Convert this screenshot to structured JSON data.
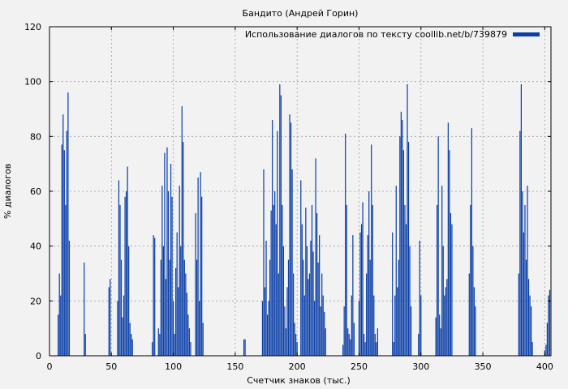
{
  "chart_data": {
    "type": "bar",
    "title": "Бандито (Андрей Горин)",
    "xlabel": "Счетчик знаков (тыс.)",
    "ylabel": "% диалогов",
    "xlim": [
      0,
      405
    ],
    "ylim": [
      0,
      120
    ],
    "xticks": [
      0,
      50,
      100,
      150,
      200,
      250,
      300,
      350,
      400
    ],
    "yticks": [
      0,
      20,
      40,
      60,
      80,
      100,
      120
    ],
    "grid": true,
    "legend_position": "top-right",
    "series": [
      {
        "name": "Использование диалогов по тексту coollib.net/b/739879",
        "color": "#0b3fa8",
        "bar_width": 0.8,
        "x": [
          7,
          8,
          9,
          10,
          11,
          12,
          13,
          14,
          15,
          16,
          28,
          29,
          48,
          49,
          55,
          56,
          57,
          58,
          59,
          60,
          61,
          62,
          63,
          64,
          65,
          66,
          67,
          83,
          84,
          85,
          88,
          89,
          90,
          91,
          92,
          93,
          94,
          95,
          96,
          97,
          98,
          99,
          100,
          101,
          102,
          103,
          104,
          105,
          106,
          107,
          108,
          109,
          110,
          111,
          112,
          113,
          114,
          118,
          119,
          120,
          121,
          122,
          123,
          124,
          157,
          158,
          172,
          173,
          174,
          175,
          176,
          177,
          178,
          179,
          180,
          181,
          182,
          183,
          184,
          185,
          186,
          187,
          188,
          189,
          190,
          191,
          192,
          193,
          194,
          195,
          196,
          197,
          198,
          199,
          200,
          203,
          204,
          205,
          206,
          207,
          208,
          209,
          210,
          211,
          212,
          213,
          214,
          215,
          216,
          217,
          218,
          219,
          220,
          221,
          222,
          223,
          237,
          238,
          239,
          240,
          241,
          242,
          243,
          244,
          245,
          246,
          250,
          251,
          252,
          253,
          254,
          255,
          256,
          257,
          258,
          259,
          260,
          261,
          262,
          263,
          264,
          265,
          277,
          278,
          279,
          280,
          281,
          282,
          283,
          284,
          285,
          286,
          287,
          288,
          289,
          290,
          291,
          292,
          298,
          299,
          300,
          312,
          313,
          314,
          315,
          316,
          317,
          318,
          319,
          320,
          321,
          322,
          323,
          324,
          325,
          339,
          340,
          341,
          342,
          343,
          344,
          379,
          380,
          381,
          382,
          383,
          384,
          385,
          386,
          387,
          388,
          389,
          390,
          400,
          401,
          402,
          403,
          404
        ],
        "values": [
          15,
          30,
          22,
          77,
          88,
          75,
          55,
          82,
          96,
          42,
          34,
          8,
          25,
          28,
          20,
          64,
          55,
          35,
          14,
          22,
          58,
          60,
          69,
          40,
          12,
          8,
          6,
          5,
          44,
          43,
          10,
          8,
          35,
          62,
          40,
          74,
          28,
          76,
          60,
          35,
          70,
          58,
          20,
          8,
          32,
          45,
          25,
          62,
          40,
          91,
          78,
          35,
          30,
          23,
          15,
          10,
          5,
          52,
          35,
          65,
          20,
          67,
          58,
          12,
          6,
          6,
          20,
          68,
          25,
          42,
          15,
          20,
          35,
          53,
          86,
          55,
          60,
          48,
          82,
          30,
          99,
          95,
          55,
          40,
          18,
          10,
          25,
          35,
          88,
          85,
          68,
          30,
          12,
          8,
          5,
          64,
          48,
          35,
          22,
          54,
          40,
          28,
          30,
          42,
          55,
          38,
          20,
          72,
          52,
          34,
          44,
          18,
          30,
          22,
          16,
          10,
          4,
          18,
          81,
          55,
          10,
          8,
          6,
          22,
          44,
          12,
          20,
          45,
          48,
          56,
          8,
          5,
          30,
          44,
          60,
          35,
          77,
          55,
          22,
          8,
          5,
          10,
          45,
          5,
          22,
          62,
          25,
          35,
          80,
          89,
          86,
          75,
          55,
          48,
          99,
          78,
          40,
          18,
          8,
          42,
          22,
          14,
          55,
          80,
          15,
          10,
          62,
          40,
          22,
          25,
          28,
          85,
          75,
          52,
          48,
          30,
          55,
          83,
          40,
          25,
          18,
          30,
          82,
          99,
          60,
          45,
          55,
          35,
          62,
          28,
          22,
          18,
          5,
          2,
          4,
          12,
          22,
          24
        ]
      }
    ]
  }
}
